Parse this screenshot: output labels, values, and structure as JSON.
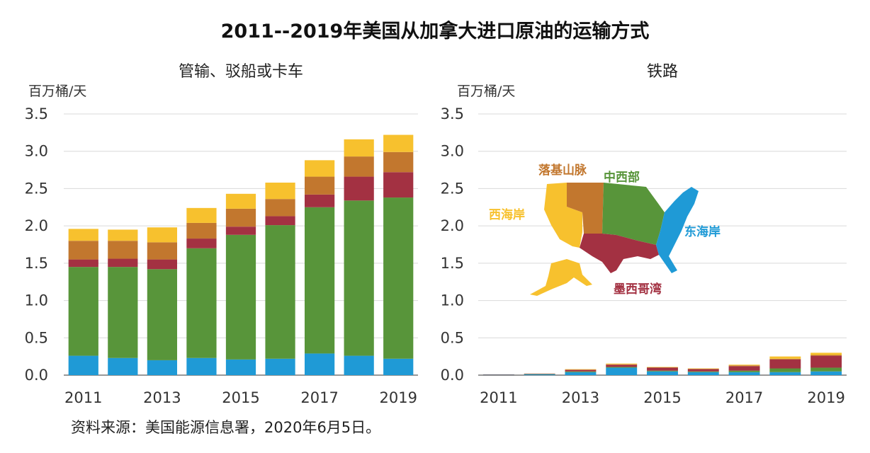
{
  "title": "2011--2019年美国从加拿大进口原油的运输方式",
  "source": "资料来源：美国能源信息署，2020年6月5日。",
  "colors": {
    "东海岸": "#1f9ad6",
    "中西部": "#58953a",
    "墨西哥湾": "#a33142",
    "落基山脉": "#c2772e",
    "西海岸": "#f7c12e"
  },
  "chart_data": [
    {
      "type": "bar",
      "stacked": true,
      "title": "管输、驳船或卡车",
      "ylabel": "百万桶/天",
      "ylim": [
        0,
        3.5
      ],
      "yticks": [
        "0.0",
        "0.5",
        "1.0",
        "1.5",
        "2.0",
        "2.5",
        "3.0",
        "3.5"
      ],
      "categories": [
        "2011",
        "2012",
        "2013",
        "2014",
        "2015",
        "2016",
        "2017",
        "2018",
        "2019"
      ],
      "xtick_labels": [
        "2011",
        "",
        "2013",
        "",
        "2015",
        "",
        "2017",
        "",
        "2019"
      ],
      "grid": true,
      "series": [
        {
          "key": "东海岸",
          "values": [
            0.26,
            0.23,
            0.2,
            0.23,
            0.21,
            0.22,
            0.29,
            0.26,
            0.22
          ]
        },
        {
          "key": "中西部",
          "values": [
            1.19,
            1.22,
            1.22,
            1.47,
            1.67,
            1.79,
            1.96,
            2.08,
            2.16
          ]
        },
        {
          "key": "墨西哥湾",
          "values": [
            0.1,
            0.11,
            0.13,
            0.13,
            0.11,
            0.12,
            0.17,
            0.32,
            0.34
          ]
        },
        {
          "key": "落基山脉",
          "values": [
            0.25,
            0.24,
            0.23,
            0.21,
            0.24,
            0.23,
            0.24,
            0.27,
            0.27
          ]
        },
        {
          "key": "西海岸",
          "values": [
            0.16,
            0.15,
            0.2,
            0.2,
            0.2,
            0.22,
            0.22,
            0.23,
            0.23
          ]
        }
      ]
    },
    {
      "type": "bar",
      "stacked": true,
      "title": "铁路",
      "ylabel": "百万桶/天",
      "ylim": [
        0,
        3.5
      ],
      "yticks": [
        "0.0",
        "0.5",
        "1.0",
        "1.5",
        "2.0",
        "2.5",
        "3.0",
        "3.5"
      ],
      "categories": [
        "2011",
        "2012",
        "2013",
        "2014",
        "2015",
        "2016",
        "2017",
        "2018",
        "2019"
      ],
      "xtick_labels": [
        "2011",
        "",
        "2013",
        "",
        "2015",
        "",
        "2017",
        "",
        "2019"
      ],
      "grid": true,
      "legend": "inset map of US regions",
      "series": [
        {
          "key": "东海岸",
          "values": [
            0.005,
            0.01,
            0.04,
            0.1,
            0.05,
            0.04,
            0.04,
            0.04,
            0.05
          ]
        },
        {
          "key": "中西部",
          "values": [
            0.003,
            0.005,
            0.01,
            0.01,
            0.01,
            0.01,
            0.02,
            0.05,
            0.05
          ]
        },
        {
          "key": "墨西哥湾",
          "values": [
            0.002,
            0.005,
            0.02,
            0.03,
            0.04,
            0.03,
            0.06,
            0.12,
            0.16
          ]
        },
        {
          "key": "落基山脉",
          "values": [
            0,
            0,
            0.005,
            0.005,
            0.005,
            0.005,
            0.01,
            0.01,
            0.01
          ]
        },
        {
          "key": "西海岸",
          "values": [
            0,
            0,
            0.005,
            0.01,
            0.005,
            0.005,
            0.01,
            0.03,
            0.03
          ]
        }
      ]
    }
  ]
}
